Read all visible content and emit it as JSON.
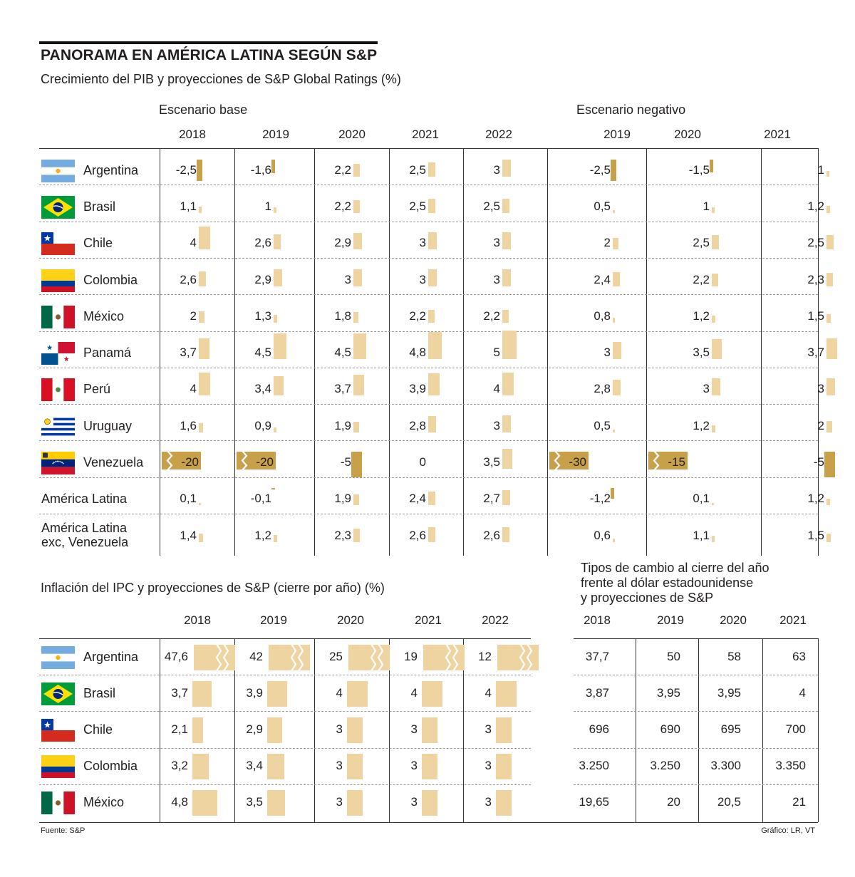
{
  "title": "PANORAMA EN AMÉRICA LATINA SEGÚN S&P",
  "subtitle": "Crecimiento del PIB y proyecciones de S&P Global Ratings (%)",
  "colors": {
    "positive": "#EDD4A0",
    "negative": "#C9A04A",
    "line": "#333333",
    "dashed": "#9A9A9A"
  },
  "chart_data": [
    {
      "type": "table",
      "title": "Crecimiento del PIB y proyecciones de S&P Global Ratings (%)",
      "groups": [
        {
          "label": "Escenario base",
          "years": [
            "2018",
            "2019",
            "2020",
            "2021",
            "2022"
          ]
        },
        {
          "label": "Escenario negativo",
          "years": [
            "2019",
            "2020",
            "2021"
          ]
        }
      ],
      "rows": [
        {
          "country": "Argentina",
          "flag": "flag-argentina",
          "values": [
            "-2,5",
            "-1,6",
            "2,2",
            "2,5",
            "3",
            "-2,5",
            "-1,5",
            "1"
          ],
          "nums": [
            -2.5,
            -1.6,
            2.2,
            2.5,
            3,
            -2.5,
            -1.5,
            1
          ]
        },
        {
          "country": "Brasil",
          "flag": "flag-brasil",
          "values": [
            "1,1",
            "1",
            "2,2",
            "2,5",
            "2,5",
            "0,5",
            "1",
            "1,2"
          ],
          "nums": [
            1.1,
            1,
            2.2,
            2.5,
            2.5,
            0.5,
            1,
            1.2
          ]
        },
        {
          "country": "Chile",
          "flag": "flag-chile",
          "values": [
            "4",
            "2,6",
            "2,9",
            "3",
            "3",
            "2",
            "2,5",
            "2,5"
          ],
          "nums": [
            4,
            2.6,
            2.9,
            3,
            3,
            2,
            2.5,
            2.5
          ]
        },
        {
          "country": "Colombia",
          "flag": "flag-colombia",
          "values": [
            "2,6",
            "2,9",
            "3",
            "3",
            "3",
            "2,4",
            "2,2",
            "2,3"
          ],
          "nums": [
            2.6,
            2.9,
            3,
            3,
            3,
            2.4,
            2.2,
            2.3
          ]
        },
        {
          "country": "México",
          "flag": "flag-mexico",
          "values": [
            "2",
            "1,3",
            "1,8",
            "2,2",
            "2,2",
            "0,8",
            "1,2",
            "1,5"
          ],
          "nums": [
            2,
            1.3,
            1.8,
            2.2,
            2.2,
            0.8,
            1.2,
            1.5
          ]
        },
        {
          "country": "Panamá",
          "flag": "flag-panama",
          "values": [
            "3,7",
            "4,5",
            "4,5",
            "4,8",
            "5",
            "3",
            "3,5",
            "3,7"
          ],
          "nums": [
            3.7,
            4.5,
            4.5,
            4.8,
            5,
            3,
            3.5,
            3.7
          ]
        },
        {
          "country": "Perú",
          "flag": "flag-peru",
          "values": [
            "4",
            "3,4",
            "3,7",
            "3,9",
            "4",
            "2,8",
            "3",
            "3"
          ],
          "nums": [
            4,
            3.4,
            3.7,
            3.9,
            4,
            2.8,
            3,
            3
          ]
        },
        {
          "country": "Uruguay",
          "flag": "flag-uruguay",
          "values": [
            "1,6",
            "0,9",
            "1,9",
            "2,8",
            "3",
            "0,5",
            "1,2",
            "2"
          ],
          "nums": [
            1.6,
            0.9,
            1.9,
            2.8,
            3,
            0.5,
            1.2,
            2
          ]
        },
        {
          "country": "Venezuela",
          "flag": "flag-venezuela",
          "values": [
            "-20",
            "-20",
            "-5",
            "0",
            "3,5",
            "-30",
            "-15",
            "-5"
          ],
          "nums": [
            -20,
            -20,
            -5,
            0,
            3.5,
            -30,
            -15,
            -5
          ]
        },
        {
          "country": "América Latina",
          "flag": "",
          "values": [
            "0,1",
            "-0,1",
            "1,9",
            "2,4",
            "2,7",
            "-1,2",
            "0,1",
            "1,2"
          ],
          "nums": [
            0.1,
            -0.1,
            1.9,
            2.4,
            2.7,
            -1.2,
            0.1,
            1.2
          ]
        },
        {
          "country": "América Latina",
          "country2": "exc, Venezuela",
          "flag": "",
          "values": [
            "1,4",
            "1,2",
            "2,3",
            "2,6",
            "2,6",
            "0,6",
            "1,1",
            "1,5"
          ],
          "nums": [
            1.4,
            1.2,
            2.3,
            2.6,
            2.6,
            0.6,
            1.1,
            1.5
          ]
        }
      ]
    },
    {
      "type": "table",
      "title": "Inflación del IPC y proyecciones de S&P (cierre por año) (%)",
      "years": [
        "2018",
        "2019",
        "2020",
        "2021",
        "2022"
      ],
      "rows": [
        {
          "country": "Argentina",
          "flag": "flag-argentina",
          "values": [
            "47,6",
            "42",
            "25",
            "19",
            "12"
          ],
          "nums": [
            47.6,
            42,
            25,
            19,
            12
          ]
        },
        {
          "country": "Brasil",
          "flag": "flag-brasil",
          "values": [
            "3,7",
            "3,9",
            "4",
            "4",
            "4"
          ],
          "nums": [
            3.7,
            3.9,
            4,
            4,
            4
          ]
        },
        {
          "country": "Chile",
          "flag": "flag-chile",
          "values": [
            "2,1",
            "2,9",
            "3",
            "3",
            "3"
          ],
          "nums": [
            2.1,
            2.9,
            3,
            3,
            3
          ]
        },
        {
          "country": "Colombia",
          "flag": "flag-colombia",
          "values": [
            "3,2",
            "3,4",
            "3",
            "3",
            "3"
          ],
          "nums": [
            3.2,
            3.4,
            3,
            3,
            3
          ]
        },
        {
          "country": "México",
          "flag": "flag-mexico",
          "values": [
            "4,8",
            "3,5",
            "3",
            "3",
            "3"
          ],
          "nums": [
            4.8,
            3.5,
            3,
            3,
            3
          ]
        }
      ]
    },
    {
      "type": "table",
      "title": "Tipos de cambio al cierre del año frente al dólar estadounidense y proyecciones de S&P",
      "title_lines": [
        "Tipos de cambio al cierre del año",
        "frente al dólar estadounidense",
        "y proyecciones de S&P"
      ],
      "years": [
        "2018",
        "2019",
        "2020",
        "2021"
      ],
      "rows": [
        [
          "37,7",
          "50",
          "58",
          "63"
        ],
        [
          "3,87",
          "3,95",
          "3,95",
          "4"
        ],
        [
          "696",
          "690",
          "695",
          "700"
        ],
        [
          "3.250",
          "3.250",
          "3.300",
          "3.350"
        ],
        [
          "19,65",
          "20",
          "20,5",
          "21"
        ]
      ]
    }
  ],
  "footer": {
    "source": "Fuente: S&P",
    "credit": "Gráfico: LR, VT"
  }
}
